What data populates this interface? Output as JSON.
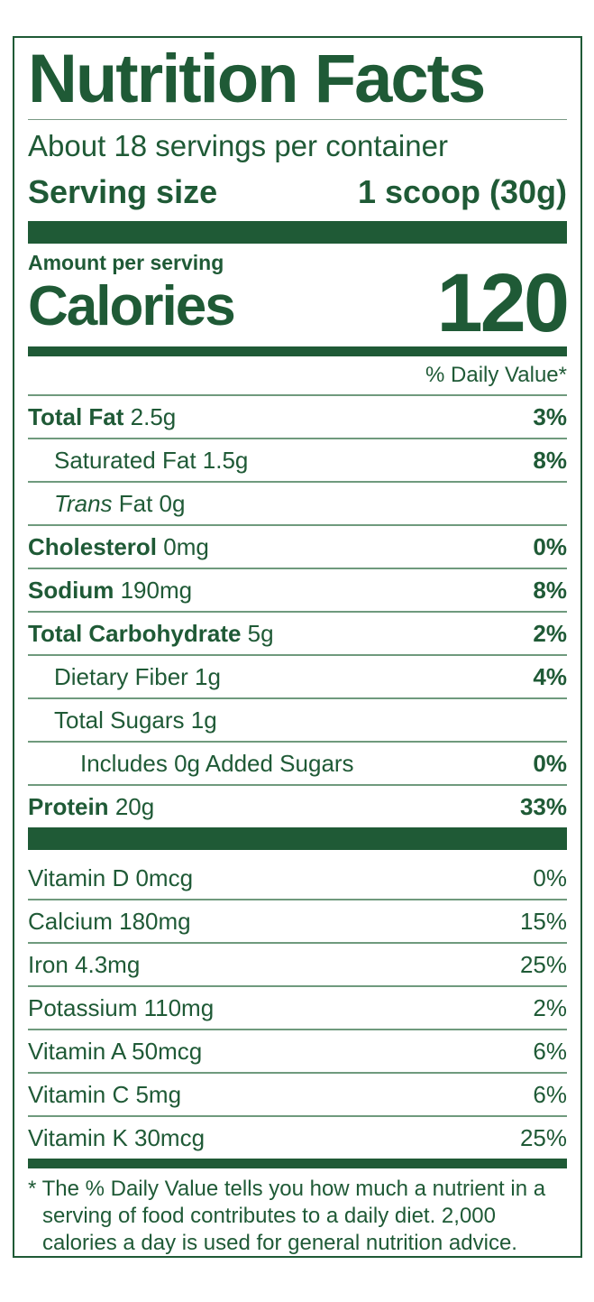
{
  "title": "Nutrition Facts",
  "servings_per_container": "About 18 servings per container",
  "serving_size_label": "Serving size",
  "serving_size_value": "1 scoop (30g)",
  "amount_per_serving": "Amount per serving",
  "calories_label": "Calories",
  "calories_value": "120",
  "daily_value_header": "% Daily Value*",
  "nutrients": [
    {
      "name": "Total Fat",
      "amount": "2.5g",
      "dv": "3%"
    },
    {
      "name": "Saturated Fat 1.5g",
      "amount": "",
      "dv": "8%"
    },
    {
      "name": "Trans",
      "amount": "Fat 0g",
      "dv": ""
    },
    {
      "name": "Cholesterol",
      "amount": "0mg",
      "dv": "0%"
    },
    {
      "name": "Sodium",
      "amount": "190mg",
      "dv": "8%"
    },
    {
      "name": "Total Carbohydrate",
      "amount": "5g",
      "dv": "2%"
    },
    {
      "name": "Dietary Fiber 1g",
      "amount": "",
      "dv": "4%"
    },
    {
      "name": "Total Sugars 1g",
      "amount": "",
      "dv": ""
    },
    {
      "name": "Includes 0g Added Sugars",
      "amount": "",
      "dv": "0%"
    },
    {
      "name": "Protein",
      "amount": "20g",
      "dv": "33%"
    }
  ],
  "vitamins": [
    {
      "name": "Vitamin D 0mcg",
      "dv": "0%"
    },
    {
      "name": "Calcium 180mg",
      "dv": "15%"
    },
    {
      "name": "Iron 4.3mg",
      "dv": "25%"
    },
    {
      "name": "Potassium 110mg",
      "dv": "2%"
    },
    {
      "name": "Vitamin A 50mcg",
      "dv": "6%"
    },
    {
      "name": "Vitamin C 5mg",
      "dv": "6%"
    },
    {
      "name": "Vitamin K 30mcg",
      "dv": "25%"
    }
  ],
  "footnote": "* The % Daily Value tells you how much a nutrient in a serving of food contributes to a daily diet. 2,000 calories a day is used for general nutrition advice.",
  "colors": {
    "ink": "#1f5a36",
    "background": "#ffffff"
  }
}
